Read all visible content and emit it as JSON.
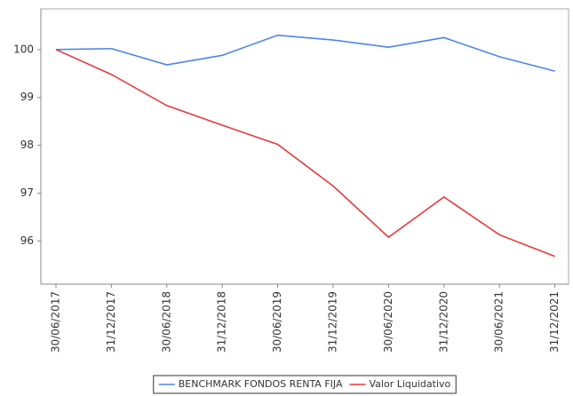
{
  "chart_data": {
    "type": "line",
    "categories": [
      "30/06/2017",
      "31/12/2017",
      "30/06/2018",
      "31/12/2018",
      "30/06/2019",
      "31/12/2019",
      "30/06/2020",
      "31/12/2020",
      "30/06/2021",
      "31/12/2021"
    ],
    "series": [
      {
        "name": "BENCHMARK FONDOS RENTA FIJA",
        "color": "#4a86e8",
        "values": [
          100,
          100.02,
          99.68,
          99.88,
          100.3,
          100.2,
          100.05,
          100.25,
          99.85,
          99.55
        ]
      },
      {
        "name": "Valor Liquidativo",
        "color": "#e8393a",
        "values": [
          100,
          99.48,
          98.83,
          98.42,
          98.02,
          97.15,
          96.08,
          96.92,
          96.13,
          95.68
        ]
      }
    ],
    "ylim": [
      95.1,
      100.85
    ],
    "yticks": [
      96,
      97,
      98,
      99,
      100
    ],
    "grid": false,
    "legend": "bottom"
  }
}
